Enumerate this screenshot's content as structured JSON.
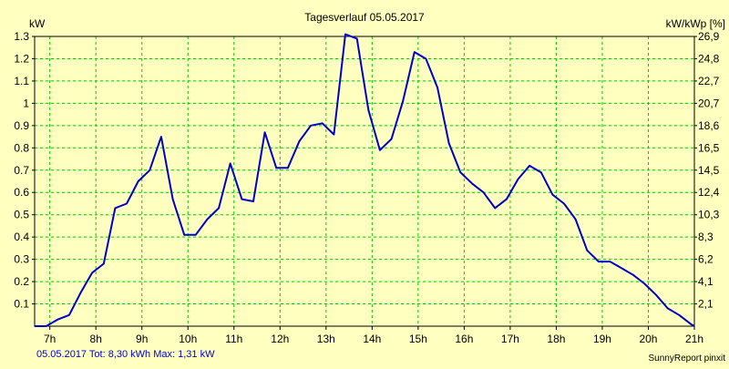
{
  "chart_data": {
    "type": "line",
    "title": "Tagesverlauf 05.05.2017",
    "ylabel": "kW",
    "ylabel_right": "kW/kWp [%]",
    "ylim": [
      0,
      1.3
    ],
    "xlim": [
      6.67,
      21.0
    ],
    "y_ticks": [
      "0.1",
      "0.2",
      "0.3",
      "0.4",
      "0.5",
      "0.6",
      "0.7",
      "0.8",
      "0.9",
      "1",
      "1.1",
      "1.2",
      "1.3"
    ],
    "y2_ticks": [
      "2,1",
      "4,1",
      "6,2",
      "8,3",
      "10,3",
      "12,4",
      "14,5",
      "16,5",
      "18,6",
      "20,7",
      "22,7",
      "24,8",
      "26,9"
    ],
    "x_ticks": [
      {
        "hour": 7,
        "label": "7h"
      },
      {
        "hour": 8,
        "label": "8h"
      },
      {
        "hour": 9,
        "label": "9h"
      },
      {
        "hour": 10,
        "label": "10h"
      },
      {
        "hour": 11,
        "label": "11h"
      },
      {
        "hour": 12,
        "label": "12h"
      },
      {
        "hour": 13,
        "label": "13h"
      },
      {
        "hour": 14,
        "label": "14h"
      },
      {
        "hour": 15,
        "label": "15h"
      },
      {
        "hour": 16,
        "label": "16h"
      },
      {
        "hour": 17,
        "label": "17h"
      },
      {
        "hour": 18,
        "label": "18h"
      },
      {
        "hour": 19,
        "label": "19h"
      },
      {
        "hour": 20,
        "label": "20h"
      },
      {
        "hour": 21,
        "label": "21h"
      }
    ],
    "grid": true,
    "series": [
      {
        "color": "#0000cc",
        "x": [
          6.67,
          6.92,
          7.17,
          7.42,
          7.67,
          7.92,
          8.17,
          8.42,
          8.67,
          8.92,
          9.17,
          9.42,
          9.67,
          9.92,
          10.17,
          10.42,
          10.67,
          10.92,
          11.17,
          11.42,
          11.67,
          11.92,
          12.17,
          12.42,
          12.67,
          12.92,
          13.17,
          13.42,
          13.67,
          13.92,
          14.17,
          14.42,
          14.67,
          14.92,
          15.17,
          15.42,
          15.67,
          15.92,
          16.17,
          16.42,
          16.67,
          16.92,
          17.17,
          17.42,
          17.67,
          17.92,
          18.17,
          18.42,
          18.67,
          18.92,
          19.17,
          19.42,
          19.67,
          19.92,
          20.17,
          20.42,
          20.67,
          20.92,
          21.0
        ],
        "values": [
          0.0,
          0.0,
          0.03,
          0.05,
          0.15,
          0.24,
          0.28,
          0.53,
          0.55,
          0.65,
          0.7,
          0.85,
          0.57,
          0.41,
          0.41,
          0.48,
          0.53,
          0.73,
          0.57,
          0.56,
          0.87,
          0.71,
          0.71,
          0.83,
          0.9,
          0.91,
          0.86,
          1.31,
          1.29,
          0.97,
          0.79,
          0.84,
          1.01,
          1.23,
          1.2,
          1.07,
          0.82,
          0.69,
          0.64,
          0.6,
          0.53,
          0.57,
          0.66,
          0.72,
          0.69,
          0.59,
          0.55,
          0.48,
          0.34,
          0.29,
          0.29,
          0.26,
          0.23,
          0.19,
          0.14,
          0.08,
          0.05,
          0.01,
          0.0
        ]
      }
    ]
  },
  "footer": {
    "summary": "05.05.2017 Tot: 8,30 kWh Max: 1,31 kW",
    "brand": "SunnyReport pinxit"
  },
  "colors": {
    "background": "#ffffc0",
    "grid": "#00cc00",
    "line": "#0000cc",
    "footer_text": "#0000cc",
    "axis": "#000000"
  }
}
